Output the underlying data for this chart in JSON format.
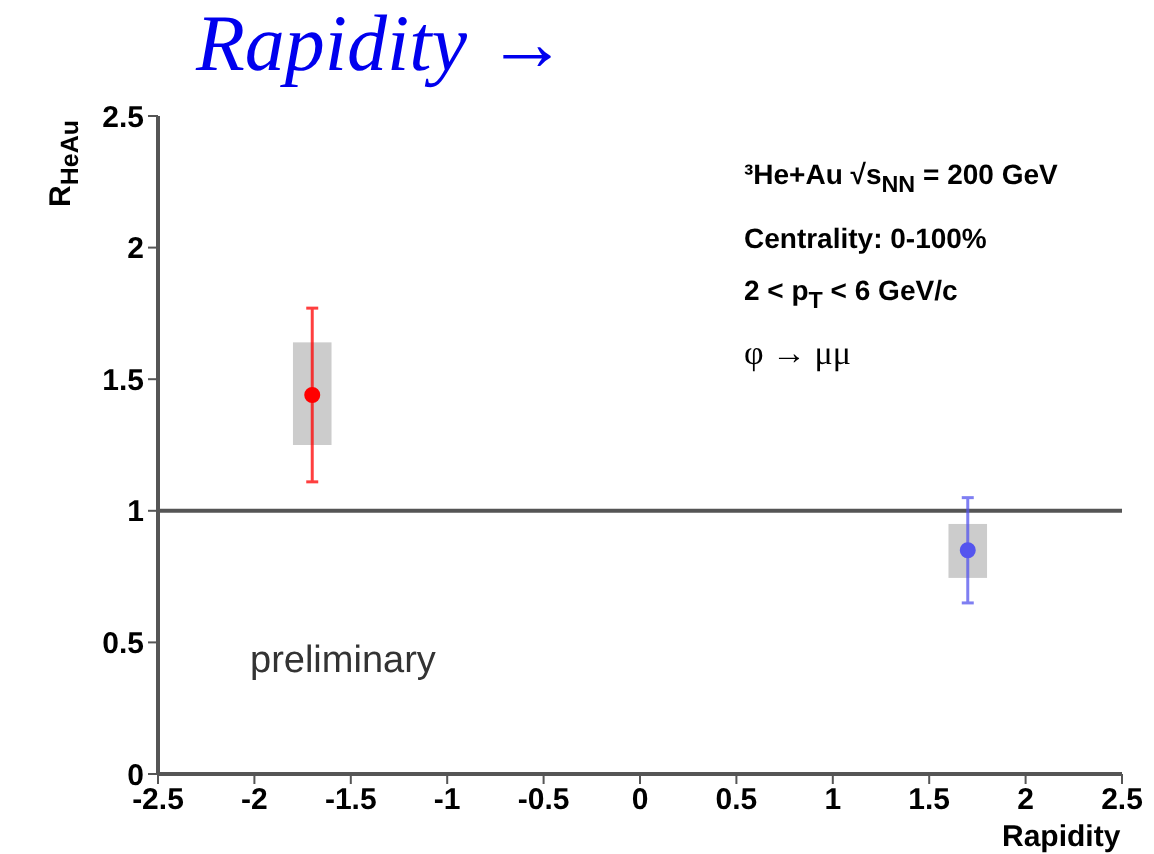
{
  "chart_data": {
    "type": "scatter",
    "title": "Rapidity →",
    "xlabel": "Rapidity",
    "ylabel": "R$_{HeAu}$",
    "x": [
      -1.7,
      1.7
    ],
    "xlim": [
      -2.5,
      2.5
    ],
    "xticks": [
      -2.5,
      -2,
      -1.5,
      -1,
      -0.5,
      0,
      0.5,
      1,
      1.5,
      2,
      2.5
    ],
    "ylim": [
      0,
      2.5
    ],
    "yticks": [
      0,
      0.5,
      1,
      1.5,
      2,
      2.5
    ],
    "marker": "circle",
    "series": [
      {
        "type": "bar",
        "color": "#cccccc",
        "base": [
          1.25,
          0.745
        ],
        "values": [
          0.39,
          0.205
        ]
      },
      {
        "color": "#ff0000",
        "values": [
          1.44,
          null
        ],
        "errors": [
          [
            1.11,
            1.77
          ],
          null
        ]
      },
      {
        "color": "#5555ee",
        "values": [
          null,
          0.85
        ],
        "errors": [
          null,
          [
            0.65,
            1.05
          ]
        ]
      }
    ],
    "ref_lines": [
      {
        "axis": "y",
        "value": 1,
        "color": "#555555"
      }
    ],
    "annotations": [
      "³He+Au √s$_{NN}$ = 200 GeV",
      "Centrality: 0-100%",
      "2 < p$_{T}$ < 6 GeV/c",
      "φ → μμ",
      "preliminary"
    ]
  }
}
